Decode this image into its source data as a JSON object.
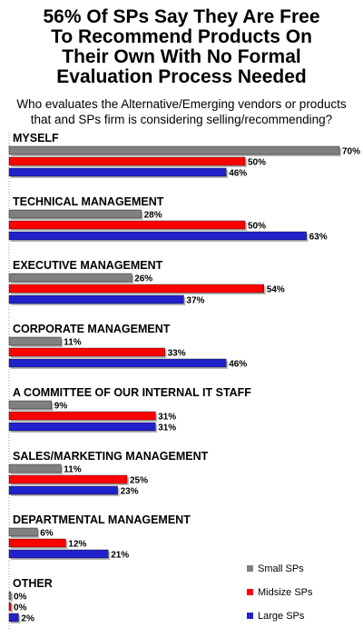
{
  "title_lines": [
    "56% Of SPs Say They Are Free",
    "To Recommend Products On",
    "Their Own With No Formal",
    "Evaluation Process Needed"
  ],
  "subtitle_lines": [
    "Who evaluates the Alternative/Emerging vendors or products",
    "that and SPs firm is considering selling/recommending?"
  ],
  "chart_data": {
    "type": "bar",
    "orientation": "horizontal",
    "categories": [
      "MYSELF",
      "TECHNICAL MANAGEMENT",
      "EXECUTIVE MANAGEMENT",
      "CORPORATE MANAGEMENT",
      "A COMMITTEE OF OUR INTERNAL IT STAFF",
      "SALES/MARKETING MANAGEMENT",
      "DEPARTMENTAL MANAGEMENT",
      "OTHER"
    ],
    "series": [
      {
        "name": "Small SPs",
        "color": "#808080",
        "values": [
          70,
          28,
          26,
          11,
          9,
          11,
          6,
          0
        ]
      },
      {
        "name": "Midsize SPs",
        "color": "#ff0000",
        "values": [
          50,
          50,
          54,
          33,
          31,
          25,
          12,
          0
        ]
      },
      {
        "name": "Large SPs",
        "color": "#2222cc",
        "values": [
          46,
          63,
          37,
          46,
          31,
          23,
          21,
          2
        ]
      }
    ],
    "value_suffix": "%",
    "xlim": [
      0,
      70
    ],
    "grid": false,
    "legend_position": "bottom-right"
  }
}
